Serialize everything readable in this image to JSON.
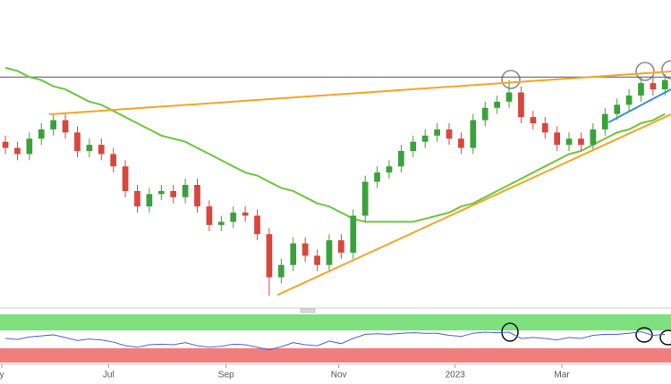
{
  "chart_data": {
    "type": "candlestick",
    "xlim": [
      -0.45,
      55.5
    ],
    "xticks": [
      {
        "value": -0.3,
        "label": "y"
      },
      {
        "value": 8.6,
        "label": "Jul"
      },
      {
        "value": 18.4,
        "label": "Sep"
      },
      {
        "value": 27.8,
        "label": "Nov"
      },
      {
        "value": 37.5,
        "label": "2023"
      },
      {
        "value": 46.4,
        "label": "Mar"
      }
    ],
    "ylim": [
      0,
      100
    ],
    "up_color": "#3aa23a",
    "down_color": "#d9463b",
    "open": [
      54,
      52,
      50,
      55,
      58,
      61,
      57,
      51,
      53,
      50,
      46,
      38,
      33,
      37,
      38,
      36,
      40,
      33,
      27,
      28,
      31,
      30,
      24,
      10,
      14,
      21,
      17,
      14,
      22,
      18,
      30,
      41,
      44,
      46,
      51,
      54,
      56,
      58,
      55,
      52,
      61,
      65,
      67,
      70,
      62,
      60,
      57,
      53,
      55,
      53,
      58,
      63,
      66,
      69,
      73,
      71
    ],
    "high": [
      56,
      54,
      57,
      60,
      63,
      63,
      59,
      55,
      55,
      52,
      48,
      40,
      39,
      40,
      40,
      42,
      42,
      35,
      30,
      33,
      33,
      32,
      26,
      16,
      23,
      23,
      19,
      24,
      24,
      32,
      43,
      46,
      48,
      53,
      56,
      58,
      60,
      60,
      57,
      63,
      67,
      69,
      74,
      72,
      64,
      62,
      59,
      57,
      57,
      60,
      65,
      68,
      71,
      75,
      75,
      76
    ],
    "low": [
      50,
      48,
      48,
      53,
      56,
      55,
      49,
      49,
      48,
      44,
      36,
      31,
      31,
      35,
      34,
      34,
      31,
      25,
      25,
      26,
      28,
      22,
      4,
      8,
      12,
      15,
      12,
      12,
      16,
      16,
      28,
      39,
      42,
      44,
      49,
      52,
      54,
      53,
      50,
      50,
      59,
      63,
      65,
      60,
      58,
      55,
      51,
      51,
      51,
      51,
      56,
      61,
      64,
      67,
      69,
      69
    ],
    "close": [
      52,
      50,
      55,
      58,
      61,
      57,
      51,
      53,
      50,
      46,
      38,
      33,
      37,
      38,
      36,
      40,
      33,
      27,
      28,
      31,
      30,
      24,
      10,
      14,
      21,
      17,
      14,
      22,
      18,
      30,
      41,
      44,
      46,
      51,
      54,
      56,
      58,
      55,
      52,
      61,
      65,
      67,
      70,
      62,
      60,
      57,
      53,
      55,
      53,
      58,
      63,
      66,
      69,
      73,
      71,
      74
    ],
    "moving_average": {
      "color": "#6cc73a",
      "values": [
        78,
        77,
        75,
        74,
        72,
        71,
        69,
        67,
        66,
        64,
        62,
        60,
        58,
        56,
        55,
        54,
        52,
        50,
        48,
        46,
        44,
        43,
        41,
        39,
        38,
        36,
        34,
        33,
        31,
        29,
        28,
        28,
        28,
        28,
        28,
        29,
        30,
        31,
        33,
        34,
        36,
        38,
        40,
        42,
        44,
        46,
        48,
        50,
        51,
        53,
        55,
        57,
        58,
        60,
        61,
        63
      ]
    },
    "horizontal_line": {
      "color": "#4a5470",
      "value": 75
    },
    "trendlines": [
      {
        "color": "#f5a524",
        "points": [
          [
            3.65,
            62.9
          ],
          [
            55.5,
            76.8
          ]
        ]
      },
      {
        "color": "#f5a524",
        "points": [
          [
            22.7,
            4.3
          ],
          [
            55.5,
            62.9
          ]
        ]
      },
      {
        "color": "#3a8fd6",
        "points": [
          [
            50.3,
            60.3
          ],
          [
            55.5,
            71
          ]
        ]
      }
    ],
    "oscillator": {
      "color": "#4a62d8",
      "ylim": [
        0,
        100
      ],
      "values": [
        50,
        48,
        53,
        55,
        57,
        52,
        46,
        49,
        47,
        43,
        36,
        33,
        38,
        39,
        38,
        42,
        36,
        33,
        35,
        39,
        38,
        33,
        28,
        34,
        42,
        38,
        36,
        45,
        40,
        50,
        58,
        59,
        58,
        60,
        61,
        60,
        60,
        56,
        54,
        60,
        62,
        61,
        62,
        50,
        52,
        50,
        47,
        52,
        50,
        56,
        58,
        58,
        60,
        63,
        56,
        58
      ]
    }
  }
}
